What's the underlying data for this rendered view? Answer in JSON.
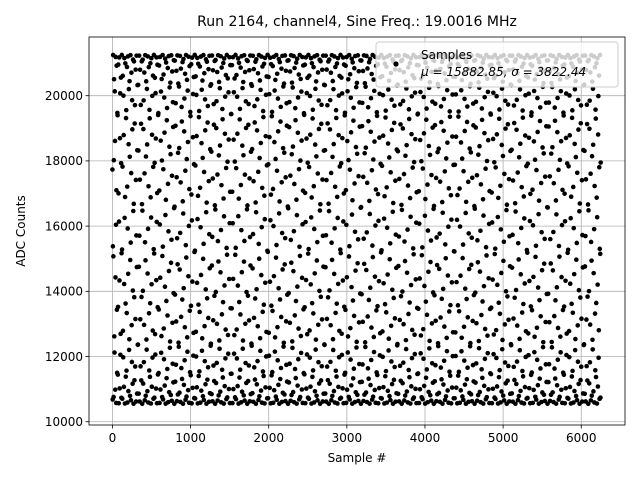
{
  "chart_data": {
    "type": "scatter",
    "title": "Run 2164, channel4, Sine Freq.: 19.0016 MHz",
    "xlabel": "Sample #",
    "ylabel": "ADC Counts",
    "xlim": [
      -300,
      6560
    ],
    "ylim": [
      9900,
      21800
    ],
    "xticks": [
      0,
      1000,
      2000,
      3000,
      4000,
      5000,
      6000
    ],
    "yticks": [
      10000,
      12000,
      14000,
      16000,
      18000,
      20000
    ],
    "grid": true,
    "legend_position": "top-right",
    "legend_title": "Samples",
    "legend_stat": "μ = 15882.85, σ = 3822.44",
    "series": [
      {
        "name": "Samples",
        "color": "#000000",
        "marker": "circle",
        "sample_count": 6250,
        "mean": 15882.85,
        "sigma": 3822.44,
        "min": 10550,
        "max": 21250
      }
    ]
  }
}
